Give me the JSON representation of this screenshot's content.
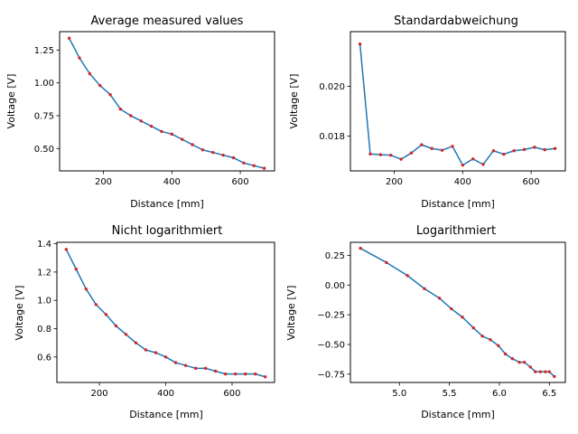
{
  "chart_data": [
    {
      "type": "line",
      "title": "Average measured values",
      "xlabel": "Distance [mm]",
      "ylabel": "Voltage [V]",
      "xlim": [
        72,
        700
      ],
      "ylim": [
        0.33,
        1.39
      ],
      "xticks": [
        200,
        400,
        600
      ],
      "xtick_labels": [
        "200",
        "400",
        "600"
      ],
      "yticks": [
        0.5,
        0.75,
        1.0,
        1.25
      ],
      "ytick_labels": [
        "0.50",
        "0.75",
        "1.00",
        "1.25"
      ],
      "grid": false,
      "line_color": "#1f77b4",
      "marker_color": "#d62728",
      "x": [
        100,
        130,
        160,
        190,
        220,
        250,
        280,
        310,
        340,
        370,
        400,
        430,
        460,
        490,
        520,
        550,
        580,
        610,
        640,
        670
      ],
      "y": [
        1.34,
        1.19,
        1.07,
        0.98,
        0.91,
        0.8,
        0.75,
        0.71,
        0.67,
        0.63,
        0.61,
        0.57,
        0.53,
        0.49,
        0.47,
        0.45,
        0.43,
        0.39,
        0.37,
        0.35
      ]
    },
    {
      "type": "line",
      "title": "Standardabweichung",
      "xlabel": "Distance [mm]",
      "ylabel": "Voltage [V]",
      "xlim": [
        72,
        700
      ],
      "ylim": [
        0.0166,
        0.0222
      ],
      "xticks": [
        200,
        400,
        600
      ],
      "xtick_labels": [
        "200",
        "400",
        "600"
      ],
      "yticks": [
        0.018,
        0.02
      ],
      "ytick_labels": [
        "0.018",
        "0.020"
      ],
      "grid": false,
      "line_color": "#1f77b4",
      "marker_color": "#d62728",
      "x": [
        100,
        130,
        160,
        190,
        220,
        250,
        280,
        310,
        340,
        370,
        400,
        430,
        460,
        490,
        520,
        550,
        580,
        610,
        640,
        670
      ],
      "y": [
        0.0217,
        0.01728,
        0.01725,
        0.01723,
        0.01707,
        0.01732,
        0.01765,
        0.0175,
        0.01743,
        0.01759,
        0.01683,
        0.01708,
        0.01686,
        0.01741,
        0.01727,
        0.01741,
        0.01746,
        0.01755,
        0.01745,
        0.0175
      ]
    },
    {
      "type": "line",
      "title": "Nicht logarithmiert",
      "xlabel": "Distance [mm]",
      "ylabel": "Voltage [V]",
      "xlim": [
        72,
        728
      ],
      "ylim": [
        0.42,
        1.41
      ],
      "xticks": [
        200,
        400,
        600
      ],
      "xtick_labels": [
        "200",
        "400",
        "600"
      ],
      "yticks": [
        0.6,
        0.8,
        1.0,
        1.2,
        1.4
      ],
      "ytick_labels": [
        "0.6",
        "0.8",
        "1.0",
        "1.2",
        "1.4"
      ],
      "grid": false,
      "line_color": "#1f77b4",
      "marker_color": "#d62728",
      "x": [
        100,
        130,
        160,
        190,
        220,
        250,
        280,
        310,
        340,
        370,
        400,
        430,
        460,
        490,
        520,
        550,
        580,
        610,
        640,
        670,
        700
      ],
      "y": [
        1.36,
        1.22,
        1.08,
        0.97,
        0.9,
        0.82,
        0.76,
        0.7,
        0.65,
        0.63,
        0.6,
        0.56,
        0.54,
        0.52,
        0.52,
        0.5,
        0.48,
        0.48,
        0.48,
        0.48,
        0.46
      ]
    },
    {
      "type": "line",
      "title": "Logarithmiert",
      "xlabel": "Distance [mm]",
      "ylabel": "Voltage [V]",
      "xlim": [
        4.51,
        6.66
      ],
      "ylim": [
        -0.82,
        0.36
      ],
      "xticks": [
        5.0,
        5.5,
        6.0,
        6.5
      ],
      "xtick_labels": [
        "5.0",
        "5.5",
        "6.0",
        "6.5"
      ],
      "yticks": [
        -0.75,
        -0.5,
        -0.25,
        0.0,
        0.25
      ],
      "ytick_labels": [
        "−0.75",
        "−0.50",
        "−0.25",
        "0.00",
        "0.25"
      ],
      "grid": false,
      "line_color": "#1f77b4",
      "marker_color": "#d62728",
      "x": [
        4.61,
        4.87,
        5.08,
        5.25,
        5.4,
        5.52,
        5.63,
        5.74,
        5.83,
        5.91,
        5.99,
        6.06,
        6.13,
        6.2,
        6.25,
        6.31,
        6.36,
        6.41,
        6.46,
        6.5,
        6.55
      ],
      "y": [
        0.31,
        0.19,
        0.08,
        -0.03,
        -0.11,
        -0.2,
        -0.27,
        -0.36,
        -0.43,
        -0.46,
        -0.51,
        -0.58,
        -0.62,
        -0.65,
        -0.65,
        -0.69,
        -0.73,
        -0.73,
        -0.73,
        -0.73,
        -0.77
      ]
    }
  ]
}
